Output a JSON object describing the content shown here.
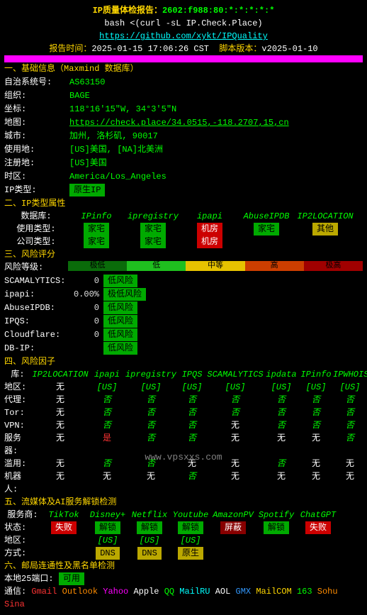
{
  "title_prefix": "IP质量体检报告：",
  "title_ip": "2602:f988:80:*:*:*:*:*",
  "curl": "bash <(curl -sL IP.Check.Place)",
  "repo": "https://github.com/xykt/IPQuality",
  "time_lbl": "报告时间：",
  "time": "2025-01-15 17:06:26 CST",
  "ver_lbl": "脚本版本：",
  "ver": "v2025-01-10",
  "s1": "一、基础信息（Maxmind 数据库）",
  "basic": [
    {
      "k": "自治系统号:",
      "v": "AS63150"
    },
    {
      "k": "组织:",
      "v": "BAGE"
    },
    {
      "k": "坐标:",
      "v": "118°16'15\"W, 34°3'5\"N"
    },
    {
      "k": "地图:",
      "v": "https://check.place/34.0515,-118.2707,15,cn",
      "link": true
    },
    {
      "k": "城市:",
      "v": "加州, 洛杉矶, 90017"
    },
    {
      "k": "使用地:",
      "v": "[US]美国, [NA]北美洲"
    },
    {
      "k": "注册地:",
      "v": "[US]美国"
    },
    {
      "k": "时区:",
      "v": "America/Los_Angeles"
    }
  ],
  "iptype": {
    "k": "IP类型:",
    "v": "原生IP"
  },
  "s2": "二、IP类型属性",
  "s2cols": [
    "IPinfo",
    "ipregistry",
    "ipapi",
    "AbuseIPDB",
    "IP2LOCATION"
  ],
  "s2r1": "使用类型:",
  "s2r2": "公司类型:",
  "s2v1": [
    {
      "t": "家宅",
      "c": "bg-g"
    },
    {
      "t": "家宅",
      "c": "bg-g"
    },
    {
      "t": "机房",
      "c": "bg-r"
    },
    {
      "t": "家宅",
      "c": "bg-g"
    },
    {
      "t": "其他",
      "c": "bg-y"
    }
  ],
  "s2v2": [
    {
      "t": "家宅",
      "c": "bg-g"
    },
    {
      "t": "家宅",
      "c": "bg-g"
    },
    {
      "t": "机房",
      "c": "bg-r"
    },
    {
      "t": ""
    },
    {
      "t": ""
    }
  ],
  "s3": "三、风险评分",
  "risklbl": "风险等级:",
  "risk": [
    {
      "k": "SCAMALYTICS:",
      "n": "0",
      "v": "低风险",
      "c": "bg-g"
    },
    {
      "k": "ipapi:",
      "n": "0.00%",
      "v": "极低风险",
      "c": "bg-g"
    },
    {
      "k": "AbuseIPDB:",
      "n": "0",
      "v": "低风险",
      "c": "bg-g"
    },
    {
      "k": "IPQS:",
      "n": "0",
      "v": "低风险",
      "c": "bg-g"
    },
    {
      "k": "Cloudflare:",
      "n": "0",
      "v": "低风险",
      "c": "bg-g"
    },
    {
      "k": "DB-IP:",
      "n": "",
      "v": "低风险",
      "c": "bg-g"
    }
  ],
  "s4": "四、风险因子",
  "s4cols": [
    "库:",
    "IP2LOCATION",
    "ipapi",
    "ipregistry",
    "IPQS",
    "SCAMALYTICS",
    "ipdata",
    "IPinfo",
    "IPWHOIS"
  ],
  "s4rows": [
    {
      "k": "地区:",
      "v": [
        "无",
        "[US]",
        "[US]",
        "[US]",
        "[US]",
        "[US]",
        "[US]",
        "[US]"
      ]
    },
    {
      "k": "代理:",
      "v": [
        "无",
        "否",
        "否",
        "否",
        "否",
        "否",
        "否",
        "否"
      ]
    },
    {
      "k": "Tor:",
      "v": [
        "无",
        "否",
        "否",
        "否",
        "否",
        "否",
        "否",
        "否"
      ]
    },
    {
      "k": "VPN:",
      "v": [
        "无",
        "否",
        "否",
        "否",
        "无",
        "否",
        "否",
        "否"
      ]
    },
    {
      "k": "服务器:",
      "v": [
        "无",
        "是",
        "否",
        "否",
        "无",
        "无",
        "无",
        "否"
      ],
      "red": [
        2
      ]
    },
    {
      "k": "滥用:",
      "v": [
        "无",
        "否",
        "否",
        "无",
        "无",
        "否",
        "无",
        "无"
      ]
    },
    {
      "k": "机器人:",
      "v": [
        "无",
        "无",
        "无",
        "否",
        "无",
        "无",
        "无",
        "无"
      ]
    }
  ],
  "s5": "五、流媒体及AI服务解锁检测",
  "s5cols": [
    "服务商:",
    "TikTok",
    "Disney+",
    "Netflix",
    "Youtube",
    "AmazonPV",
    "Spotify",
    "ChatGPT"
  ],
  "s5status": "状态:",
  "s5v": [
    {
      "t": "失败",
      "c": "bg-r"
    },
    {
      "t": "解锁",
      "c": "bg-g"
    },
    {
      "t": "解锁",
      "c": "bg-g"
    },
    {
      "t": "解锁",
      "c": "bg-g"
    },
    {
      "t": "屏蔽",
      "c": "bg-dr"
    },
    {
      "t": "解锁",
      "c": "bg-g"
    },
    {
      "t": "失败",
      "c": "bg-r"
    }
  ],
  "s5region": "地区:",
  "s5rv": [
    "",
    "[US]",
    "[US]",
    "[US]",
    "",
    "",
    ""
  ],
  "s5type": "方式:",
  "s5tv": [
    "",
    "DNS",
    "DNS",
    "原生",
    "",
    "",
    ""
  ],
  "s6": "六、邮局连通性及黑名单检测",
  "s6p": "本地25端口:",
  "s6v": "可用",
  "s6c": "通信:",
  "mail": [
    "Gmail",
    "Outlook",
    "Yahoo",
    "Apple",
    "QQ",
    "MailRU",
    "AOL",
    "GMX",
    "MailCOM",
    "163",
    "Sohu",
    "Sina"
  ],
  "wm": "www.vpsxxs.com"
}
